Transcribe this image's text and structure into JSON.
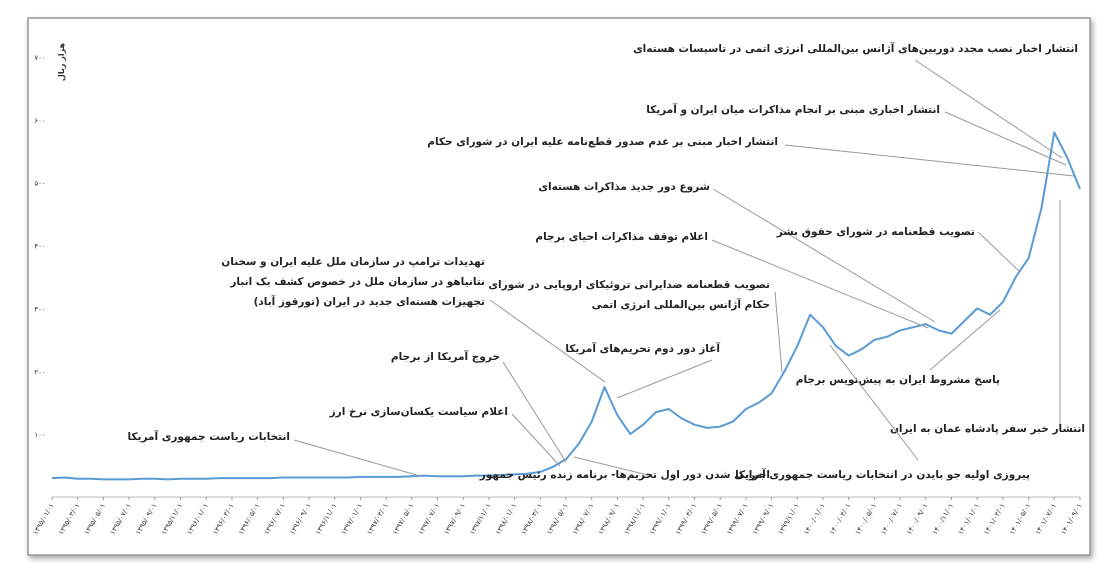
{
  "chart_data": {
    "type": "line",
    "y_label": "هزار ریال",
    "ylim": [
      0,
      700
    ],
    "yticks": [
      {
        "value": 100,
        "label": "۱۰۰"
      },
      {
        "value": 200,
        "label": "۲۰۰"
      },
      {
        "value": 300,
        "label": "۳۰۰"
      },
      {
        "value": 400,
        "label": "۴۰۰"
      },
      {
        "value": 500,
        "label": "۵۰۰"
      },
      {
        "value": 600,
        "label": "۶۰۰"
      },
      {
        "value": 700,
        "label": "۷۰۰"
      }
    ],
    "categories": [
      "۱۳۹۵/۰۱/۰۱",
      null,
      "۱۳۹۵/۰۳/۰۱",
      null,
      "۱۳۹۵/۰۵/۰۱",
      null,
      "۱۳۹۵/۰۷/۰۱",
      null,
      "۱۳۹۵/۰۹/۰۱",
      null,
      "۱۳۹۵/۱۱/۰۱",
      null,
      "۱۳۹۶/۰۱/۰۱",
      null,
      "۱۳۹۶/۰۳/۰۱",
      null,
      "۱۳۹۶/۰۵/۰۱",
      null,
      "۱۳۹۶/۰۷/۰۱",
      null,
      "۱۳۹۶/۰۹/۰۱",
      null,
      "۱۳۹۶/۱۱/۰۱",
      null,
      "۱۳۹۷/۰۱/۰۱",
      null,
      "۱۳۹۷/۰۳/۰۱",
      null,
      "۱۳۹۷/۰۵/۰۱",
      null,
      "۱۳۹۷/۰۷/۰۱",
      null,
      "۱۳۹۷/۰۹/۰۱",
      null,
      "۱۳۹۷/۱۱/۰۱",
      null,
      "۱۳۹۸/۰۱/۰۱",
      null,
      "۱۳۹۸/۰۳/۰۱",
      null,
      "۱۳۹۸/۰۵/۰۱",
      null,
      "۱۳۹۸/۰۷/۰۱",
      null,
      "۱۳۹۸/۰۹/۰۱",
      null,
      "۱۳۹۸/۱۱/۰۱",
      null,
      "۱۳۹۹/۰۱/۰۱",
      null,
      "۱۳۹۹/۰۳/۰۱",
      null,
      "۱۳۹۹/۰۵/۰۱",
      null,
      "۱۳۹۹/۰۷/۰۱",
      null,
      "۱۳۹۹/۰۹/۰۱",
      null,
      "۱۳۹۹/۱۱/۰۱",
      null,
      "۱۴۰۰/۰۱/۰۱",
      null,
      "۱۴۰۰/۰۳/۰۱",
      null,
      "۱۴۰۰/۰۵/۰۱",
      null,
      "۱۴۰۰/۰۷/۰۱",
      null,
      "۱۴۰۰/۰۹/۰۱",
      null,
      "۱۴۰۰/۱۱/۰۱",
      null,
      "۱۴۰۱/۰۱/۰۱",
      null,
      "۱۴۰۱/۰۳/۰۱",
      null,
      "۱۴۰۱/۰۵/۰۱",
      null,
      "۱۴۰۱/۰۷/۰۱",
      null,
      "۱۴۰۱/۰۹/۰۱"
    ],
    "series": [
      {
        "color": "#5b9bd5",
        "values": [
          30,
          31,
          29,
          29,
          28,
          28,
          28,
          29,
          29,
          28,
          29,
          29,
          29,
          30,
          30,
          30,
          30,
          30,
          31,
          31,
          31,
          31,
          31,
          31,
          32,
          32,
          32,
          32,
          33,
          34,
          33,
          33,
          33,
          34,
          34,
          35,
          36,
          37,
          40,
          48,
          60,
          85,
          120,
          175,
          130,
          100,
          115,
          135,
          140,
          125,
          115,
          110,
          112,
          120,
          140,
          150,
          165,
          200,
          240,
          290,
          270,
          240,
          225,
          235,
          250,
          255,
          265,
          270,
          275,
          265,
          260,
          280,
          300,
          290,
          310,
          350,
          380,
          460,
          580,
          540,
          490
        ]
      }
    ],
    "annotations": [
      {
        "text": "انتشار اخبار نصب مجدد دوربین‌های آژانس بین‌المللی انرژی اتمی در تاسیسات هسته‌ای"
      },
      {
        "text": "انتشار اخباری مبنی بر انجام مذاکرات میان ایران و آمریکا"
      },
      {
        "text": "انتشار اخبار مبنی بر عدم صدور قطع‌نامه علیه ایران در  شورای حکام"
      },
      {
        "text": "شروع دور جدید مذاکرات هسته‌ای"
      },
      {
        "text": "تصویب قطعنامه در شورای حقوق بشر"
      },
      {
        "text": "اعلام توقف مذاکرات احیای برجام"
      },
      {
        "text": "تهدیدات ترامپ در سازمان ملل علیه ایران و سخنان",
        "lines": [
          "نتانیاهو در سازمان ملل در خصوص کشف یک انبار",
          "تجهیزات هسته‌ای جدید در ایران (تورقوز آباد)"
        ]
      },
      {
        "text": "تصویب قطعنامه ضدایرانی تروئیکای اروپایی در شورای",
        "lines": [
          "حکام آژانس بین‌المللی انرژی اتمی"
        ]
      },
      {
        "text": "آغاز دور دوم تحریم‌های آمریکا"
      },
      {
        "text": "خروج آمریکا از برجام"
      },
      {
        "text": "اعلام سیاست یکسان‌سازی نرخ ارز"
      },
      {
        "text": "انتخابات ریاست جمهوری آمریکا"
      },
      {
        "text": "پاسخ مشروط ایران به پیش‌نویس برجام"
      },
      {
        "text": "انتشار خبر  سفر پادشاه عمان به ایران"
      },
      {
        "text": "پیروزی اولیه جو بایدن در انتخابات ریاست جمهوری آمریکا"
      },
      {
        "text": "اجرایی شدن دور اول تحریم‌ها- برنامه زنده رئیس جمهور"
      }
    ]
  }
}
